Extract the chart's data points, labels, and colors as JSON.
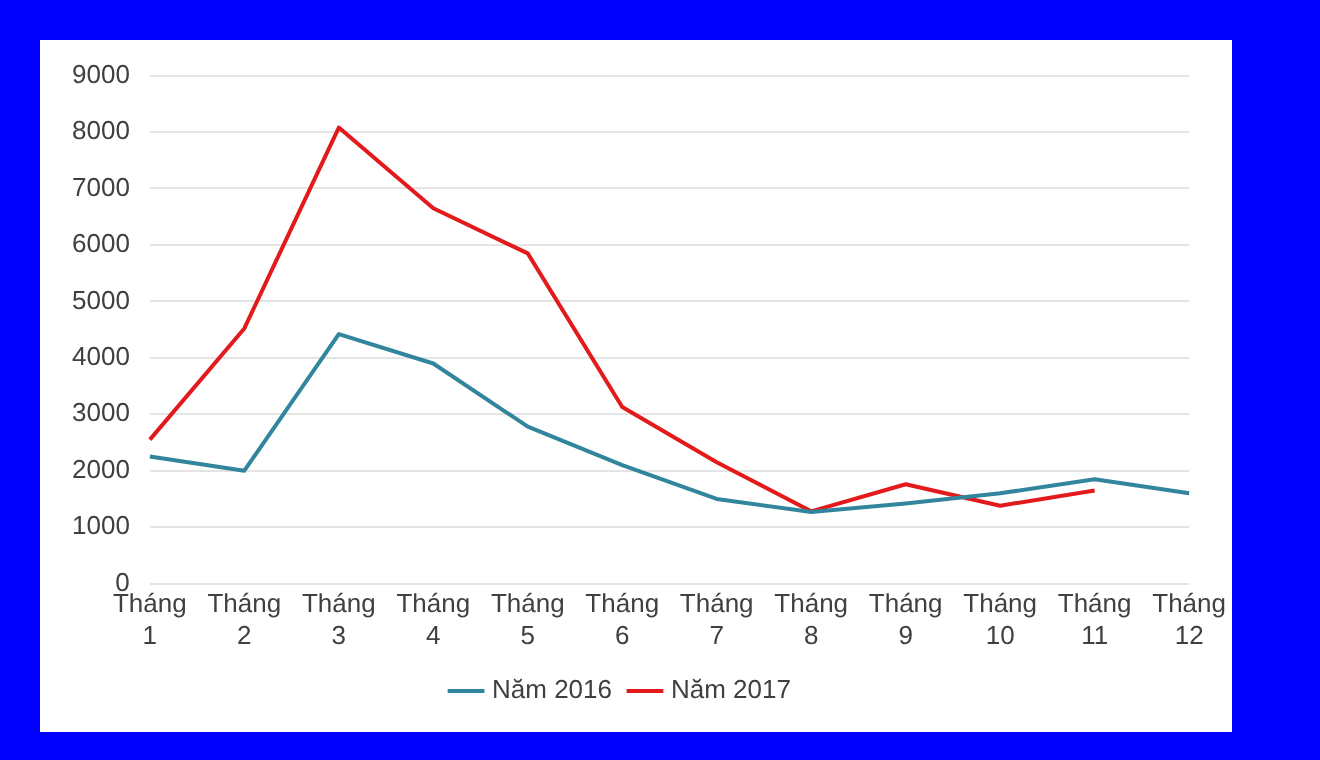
{
  "chart_data": {
    "type": "line",
    "categories": [
      "Tháng 1",
      "Tháng 2",
      "Tháng 3",
      "Tháng 4",
      "Tháng 5",
      "Tháng 6",
      "Tháng 7",
      "Tháng 8",
      "Tháng 9",
      "Tháng 10",
      "Tháng 11",
      "Tháng 12"
    ],
    "series": [
      {
        "name": "Năm 2016",
        "color": "#31859c",
        "values": [
          2250,
          2000,
          4420,
          3900,
          2780,
          2100,
          1500,
          1270,
          1420,
          1600,
          1850,
          1600
        ]
      },
      {
        "name": "Năm 2017",
        "color": "#e31a1c",
        "values": [
          2550,
          4520,
          8080,
          6650,
          5850,
          3130,
          2150,
          1280,
          1760,
          1380,
          1650,
          null
        ]
      }
    ],
    "ylim": [
      0,
      9000
    ],
    "yticks": [
      0,
      1000,
      2000,
      3000,
      4000,
      5000,
      6000,
      7000,
      8000,
      9000
    ],
    "grid": "y",
    "legend": "bottom",
    "marker": "none",
    "line_style": "solid"
  }
}
